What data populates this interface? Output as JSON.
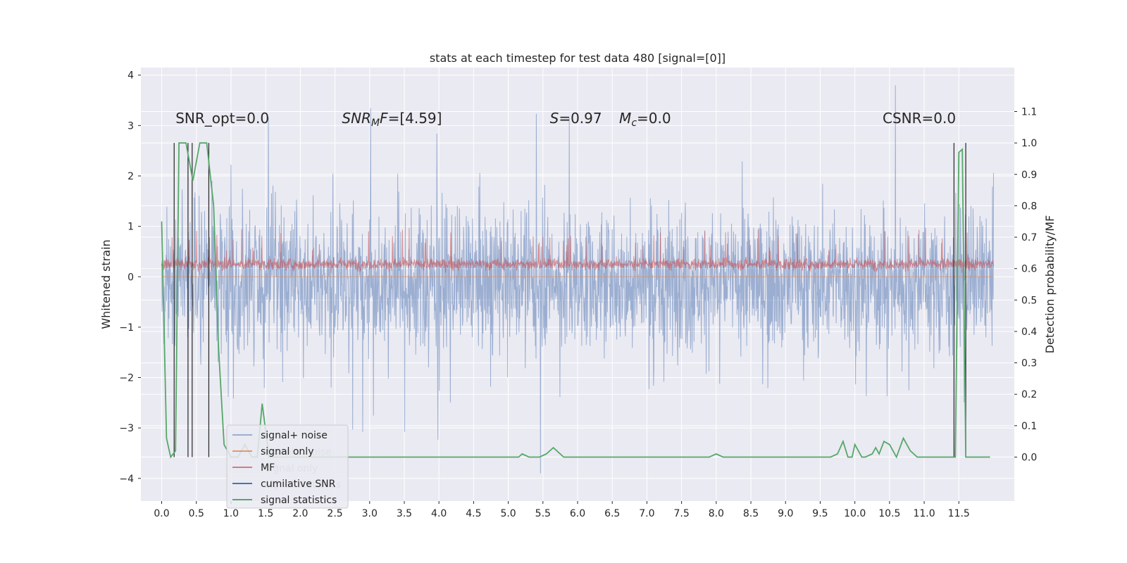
{
  "chart_data": {
    "type": "line",
    "title": "stats at each timestep for test data 480 [signal=[0]]",
    "ylabel": "Whitened strain",
    "y2label": "Detection probability/MF",
    "xlim": [
      -0.3,
      12.3
    ],
    "ylim": [
      -4.45,
      4.15
    ],
    "y2lim": [
      -0.14,
      1.24
    ],
    "x_ticks": [
      0.0,
      0.5,
      1.0,
      1.5,
      2.0,
      2.5,
      3.0,
      3.5,
      4.0,
      4.5,
      5.0,
      5.5,
      6.0,
      6.5,
      7.0,
      7.5,
      8.0,
      8.5,
      9.0,
      9.5,
      10.0,
      10.5,
      11.0,
      11.5
    ],
    "x_tick_labels": [
      "0.0",
      "0.5",
      "1.0",
      "1.5",
      "2.0",
      "2.5",
      "3.0",
      "3.5",
      "4.0",
      "4.5",
      "5.0",
      "5.5",
      "6.0",
      "6.5",
      "7.0",
      "7.5",
      "8.0",
      "8.5",
      "9.0",
      "9.5",
      "10.0",
      "10.5",
      "11.0",
      "11.5"
    ],
    "y_ticks": [
      -4,
      -3,
      -2,
      -1,
      0,
      1,
      2,
      3,
      4
    ],
    "y_tick_labels": [
      "−4",
      "−3",
      "−2",
      "−1",
      "0",
      "1",
      "2",
      "3",
      "4"
    ],
    "y2_ticks": [
      0.0,
      0.1,
      0.2,
      0.3,
      0.4,
      0.5,
      0.6,
      0.7,
      0.8,
      0.9,
      1.0,
      1.1
    ],
    "y2_tick_labels": [
      "0.0",
      "0.1",
      "0.2",
      "0.3",
      "0.4",
      "0.5",
      "0.6",
      "0.7",
      "0.8",
      "0.9",
      "1.0",
      "1.1"
    ],
    "grid": true,
    "legend_position": "lower-left",
    "series": [
      {
        "name": "signal+ noise",
        "color": "#4c72b0",
        "axis": "left",
        "description_points": {
          "x": [
            0.0,
            12.0
          ],
          "envelope_upper_approx": 1.7,
          "envelope_lower_approx": -1.9,
          "peak_max": 3.8,
          "peak_min": -4.1
        }
      },
      {
        "name": "signal only",
        "color": "#dd8452",
        "axis": "left",
        "x": [
          0.0,
          12.0
        ],
        "y": [
          0.0,
          0.0
        ]
      },
      {
        "name": "MF",
        "color": "#c44e52",
        "axis": "left",
        "description_points": {
          "x": [
            0.0,
            12.0
          ],
          "envelope_upper_approx": 0.45,
          "envelope_lower_approx": 0.05,
          "peak_max": 1.0
        }
      },
      {
        "name": "cumilative SNR",
        "color": "#4c72b0",
        "axis": "left",
        "x": [],
        "y": []
      },
      {
        "name": "signal statistics",
        "color": "#55a868",
        "axis": "right",
        "x": [
          0.0,
          0.07,
          0.13,
          0.2,
          0.25,
          0.35,
          0.45,
          0.55,
          0.65,
          0.75,
          0.82,
          0.9,
          1.0,
          1.1,
          1.2,
          1.3,
          1.38,
          1.45,
          1.55,
          1.7,
          2.0,
          4.0,
          4.5,
          5.0,
          5.15,
          5.2,
          5.3,
          5.45,
          5.55,
          5.65,
          5.8,
          7.9,
          8.0,
          8.1,
          9.5,
          9.65,
          9.75,
          9.83,
          9.9,
          9.96,
          10.0,
          10.05,
          10.1,
          10.15,
          10.25,
          10.3,
          10.35,
          10.42,
          10.5,
          10.55,
          10.6,
          10.7,
          10.8,
          10.9,
          11.4,
          11.45,
          11.5,
          11.55,
          11.6,
          11.65,
          11.7,
          11.8,
          11.9,
          11.95
        ],
        "y": [
          0.75,
          0.06,
          0.0,
          0.02,
          1.0,
          1.0,
          0.88,
          1.0,
          1.0,
          0.8,
          0.35,
          0.04,
          0.0,
          0.0,
          0.04,
          0.0,
          0.0,
          0.17,
          0.0,
          0.0,
          0.0,
          0.0,
          0.0,
          0.0,
          0.0,
          0.01,
          0.0,
          0.0,
          0.01,
          0.03,
          0.0,
          0.0,
          0.01,
          0.0,
          0.0,
          0.0,
          0.01,
          0.05,
          0.0,
          0.0,
          0.04,
          0.02,
          0.0,
          0.0,
          0.01,
          0.03,
          0.01,
          0.05,
          0.04,
          0.02,
          0.0,
          0.06,
          0.02,
          0.0,
          0.0,
          0.0,
          0.97,
          0.98,
          0.0,
          0.0,
          0.0,
          0.0,
          0.0,
          0.0
        ]
      }
    ],
    "vertical_lines": [
      0.18,
      0.38,
      0.44,
      0.68,
      11.43,
      11.6
    ],
    "annotations": [
      {
        "text": "SNR_opt=0.0",
        "x": 0.2,
        "y": 3.05
      },
      {
        "text": "SNRMF=[4.59]",
        "x": 2.6,
        "y": 3.05
      },
      {
        "text": "S=0.97",
        "x": 5.6,
        "y": 3.05
      },
      {
        "text": "Mc=0.0",
        "x": 6.6,
        "y": 3.05
      },
      {
        "text": "CSNR=0.0",
        "x": 10.4,
        "y": 3.05
      }
    ],
    "legend_entries": [
      "signal+ noise",
      "signal only",
      "MF",
      "cumilative SNR",
      "signal statistics"
    ],
    "legend_ghost_entries": [
      "signal+ noise",
      "signal only",
      "MF",
      "signal statistics"
    ]
  }
}
